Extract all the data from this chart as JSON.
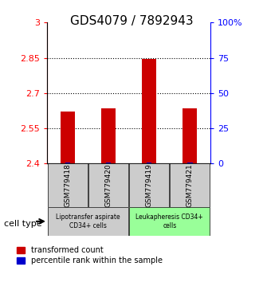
{
  "title": "GDS4079 / 7892943",
  "samples": [
    "GSM779418",
    "GSM779420",
    "GSM779419",
    "GSM779421"
  ],
  "transformed_counts": [
    2.62,
    2.635,
    2.845,
    2.635
  ],
  "percentile_rank_values": [
    1,
    1,
    1,
    1
  ],
  "ylim_left": [
    2.4,
    3.0
  ],
  "ylim_right": [
    0,
    100
  ],
  "yticks_left": [
    2.4,
    2.55,
    2.7,
    2.85,
    3.0
  ],
  "yticks_right": [
    0,
    25,
    50,
    75,
    100
  ],
  "ytick_labels_left": [
    "2.4",
    "2.55",
    "2.7",
    "2.85",
    "3"
  ],
  "ytick_labels_right": [
    "0",
    "25",
    "50",
    "75",
    "100%"
  ],
  "dotted_lines": [
    2.55,
    2.7,
    2.85
  ],
  "bar_color": "#cc0000",
  "percentile_color": "#0000cc",
  "bar_width": 0.35,
  "group1_label": "Lipotransfer aspirate\nCD34+ cells",
  "group2_label": "Leukapheresis CD34+\ncells",
  "group1_color": "#cccccc",
  "group2_color": "#99ff99",
  "cell_type_label": "cell type",
  "legend_red_label": "transformed count",
  "legend_blue_label": "percentile rank within the sample",
  "title_fontsize": 11,
  "tick_fontsize": 8
}
